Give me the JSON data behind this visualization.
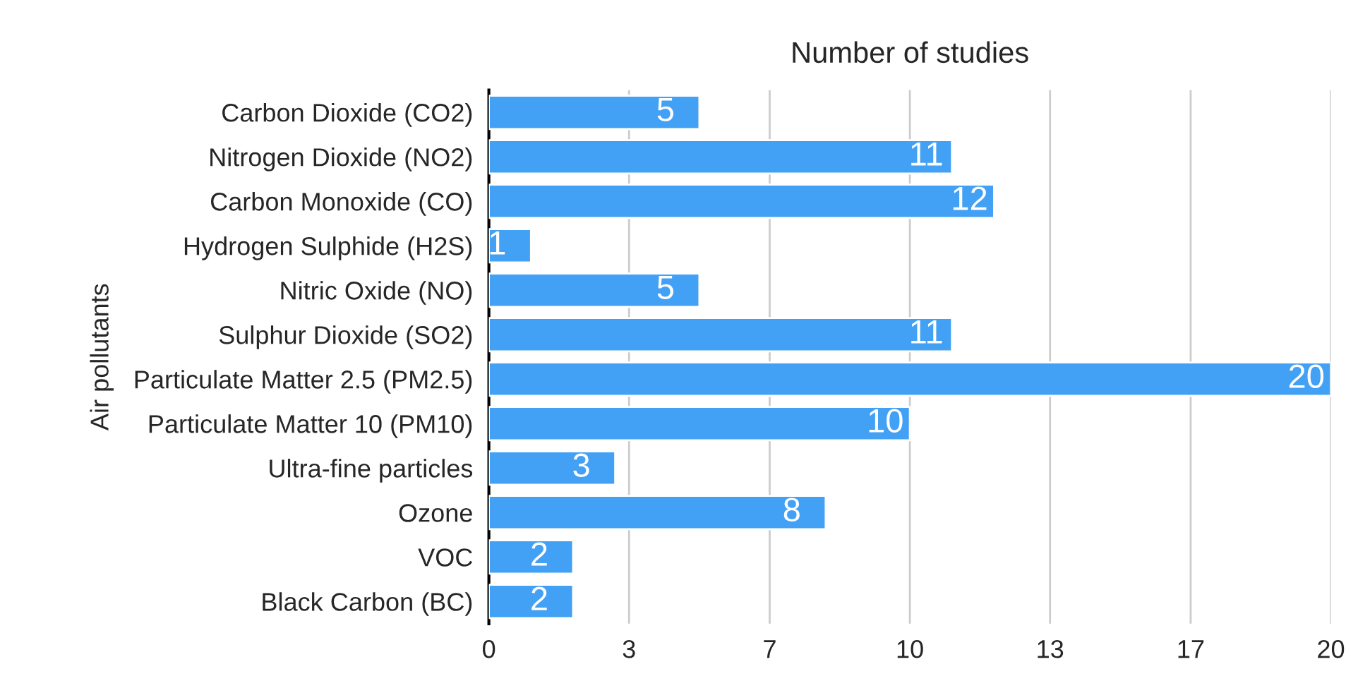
{
  "chart_data": {
    "type": "bar",
    "orientation": "horizontal",
    "xlabel": "Number of studies",
    "ylabel": "Air pollutants",
    "categories": [
      "Carbon Dioxide (CO2)",
      "Nitrogen Dioxide (NO2)",
      "Carbon Monoxide (CO)",
      "Hydrogen Sulphide (H2S)",
      "Nitric Oxide (NO)",
      "Sulphur Dioxide (SO2)",
      "Particulate Matter 2.5 (PM2.5)",
      "Particulate Matter 10 (PM10)",
      "Ultra-fine particles",
      "Ozone",
      "VOC",
      "Black Carbon (BC)"
    ],
    "values": [
      5,
      11,
      12,
      1,
      5,
      11,
      20,
      10,
      3,
      8,
      2,
      2
    ],
    "color": "#42a0f5",
    "data_labels": true,
    "xlim": [
      0,
      20
    ],
    "xticks": [
      0,
      {
        "value": 3.33,
        "label": "3"
      },
      {
        "value": 6.67,
        "label": "7"
      },
      10,
      {
        "value": 13.33,
        "label": "13"
      },
      {
        "value": 16.67,
        "label": "17"
      },
      20
    ],
    "grid": "x",
    "legend": false
  }
}
